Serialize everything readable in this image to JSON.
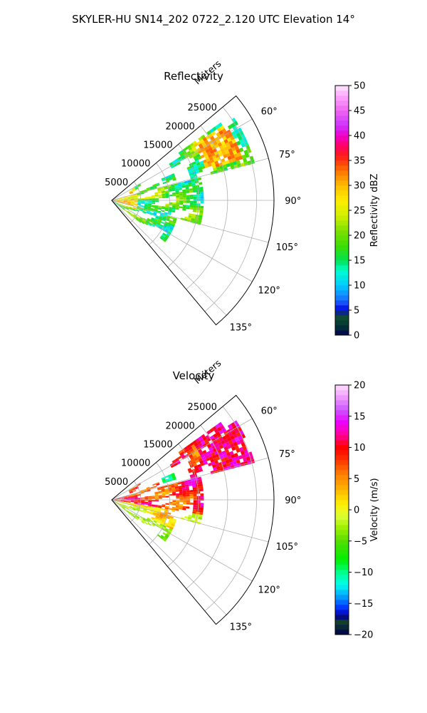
{
  "suptitle": "SKYLER-HU  SN14_202  0722_2.120 UTC Elevation 14°",
  "chart_data": [
    {
      "type": "heatmap",
      "title": "Reflectivity",
      "range_label": "Meters",
      "range_ticks": [
        5000,
        10000,
        15000,
        20000,
        25000
      ],
      "range_max": 28000,
      "azimuth_range_deg": [
        50,
        140
      ],
      "azimuth_ticks": [
        "60°",
        "75°",
        "90°",
        "105°",
        "120°",
        "135°"
      ],
      "colorbar": {
        "label": "Reflectivity dBZ",
        "min": 0,
        "max": 50,
        "ticks": [
          "0",
          "5",
          "10",
          "15",
          "20",
          "25",
          "30",
          "35",
          "40",
          "45",
          "50"
        ]
      },
      "cmap": [
        [
          0,
          "#00004d"
        ],
        [
          2,
          "#003a33"
        ],
        [
          4,
          "#145032"
        ],
        [
          5,
          "#0000dd"
        ],
        [
          7,
          "#1a6cff"
        ],
        [
          10,
          "#00ccff"
        ],
        [
          13,
          "#00ffcc"
        ],
        [
          15,
          "#00e050"
        ],
        [
          18,
          "#40dd00"
        ],
        [
          21,
          "#80e000"
        ],
        [
          24,
          "#d4f000"
        ],
        [
          27,
          "#ffee00"
        ],
        [
          30,
          "#ffbb00"
        ],
        [
          33,
          "#ff7000"
        ],
        [
          36,
          "#ff1a1a"
        ],
        [
          38,
          "#ff0066"
        ],
        [
          40,
          "#ee00cc"
        ],
        [
          42,
          "#cc33ff"
        ],
        [
          45,
          "#ee66ee"
        ],
        [
          48,
          "#ffaaff"
        ],
        [
          50,
          "#ffe6ff"
        ]
      ]
    },
    {
      "type": "heatmap",
      "title": "Velocity",
      "range_label": "Meters",
      "range_ticks": [
        5000,
        10000,
        15000,
        20000,
        25000
      ],
      "range_max": 28000,
      "azimuth_range_deg": [
        50,
        140
      ],
      "azimuth_ticks": [
        "60°",
        "75°",
        "90°",
        "105°",
        "120°",
        "135°"
      ],
      "colorbar": {
        "label": "Velocity (m/s)",
        "min": -20,
        "max": 20,
        "ticks": [
          "−20",
          "−15",
          "−10",
          "−5",
          "0",
          "5",
          "10",
          "15",
          "20"
        ]
      },
      "cmap": [
        [
          -20,
          "#00004d"
        ],
        [
          -18,
          "#133d2c"
        ],
        [
          -17,
          "#00008c"
        ],
        [
          -16,
          "#0022ff"
        ],
        [
          -14,
          "#0099ff"
        ],
        [
          -12,
          "#00ffee"
        ],
        [
          -10,
          "#00ff88"
        ],
        [
          -8,
          "#00ee00"
        ],
        [
          -5,
          "#55dd00"
        ],
        [
          -3,
          "#99ee00"
        ],
        [
          -1,
          "#ddff33"
        ],
        [
          1,
          "#ffee00"
        ],
        [
          3,
          "#ffbb00"
        ],
        [
          6,
          "#ff7700"
        ],
        [
          8,
          "#ff3300"
        ],
        [
          10,
          "#ff0000"
        ],
        [
          12,
          "#ff0099"
        ],
        [
          14,
          "#ee00ff"
        ],
        [
          16,
          "#cc55ff"
        ],
        [
          18,
          "#ee99ff"
        ],
        [
          20,
          "#ffddff"
        ]
      ]
    }
  ]
}
